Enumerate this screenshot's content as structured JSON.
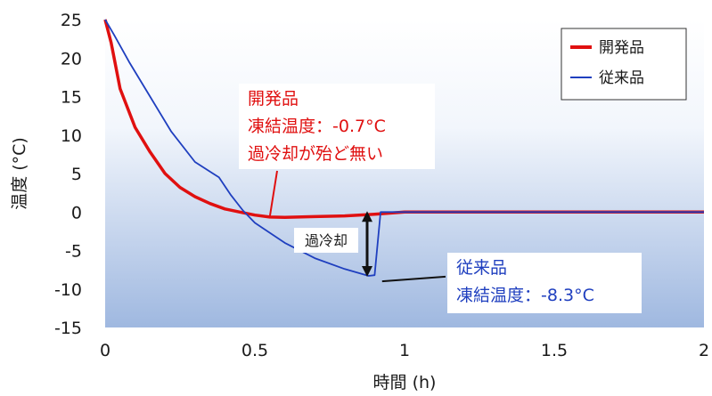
{
  "chart_data": {
    "type": "line",
    "title": "",
    "xlabel": "時間 (h)",
    "ylabel": "温度 (°C)",
    "xlim": [
      0,
      2
    ],
    "ylim": [
      -15,
      25
    ],
    "x_ticks": [
      0,
      0.5,
      1,
      1.5,
      2
    ],
    "x_tick_labels": [
      "0",
      "0.5",
      "1",
      "1.5",
      "2"
    ],
    "y_ticks": [
      25,
      20,
      15,
      10,
      5,
      0,
      -5,
      -10,
      -15
    ],
    "y_tick_labels": [
      "25",
      "20",
      "15",
      "10",
      "5",
      "0",
      "-5",
      "-10",
      "-15"
    ],
    "background": "gradient-white-to-blue",
    "legend_position": "top-right",
    "series": [
      {
        "name": "開発品",
        "color": "#e01010",
        "x": [
          0,
          0.02,
          0.05,
          0.1,
          0.15,
          0.2,
          0.25,
          0.3,
          0.35,
          0.4,
          0.45,
          0.5,
          0.55,
          0.6,
          0.7,
          0.8,
          0.9,
          1.0,
          1.2,
          1.4,
          1.6,
          1.8,
          2.0
        ],
        "y": [
          25,
          22,
          16,
          11,
          7.8,
          5,
          3.2,
          2,
          1.1,
          0.4,
          0,
          -0.4,
          -0.65,
          -0.7,
          -0.6,
          -0.5,
          -0.3,
          0,
          0,
          0,
          0,
          0,
          0
        ]
      },
      {
        "name": "従来品",
        "color": "#1f3fbf",
        "x": [
          0,
          0.03,
          0.08,
          0.15,
          0.22,
          0.3,
          0.36,
          0.38,
          0.42,
          0.46,
          0.5,
          0.6,
          0.7,
          0.8,
          0.88,
          0.9,
          0.92,
          1.0,
          1.2,
          1.4,
          1.6,
          1.8,
          2.0
        ],
        "y": [
          25,
          23,
          19.5,
          15,
          10.5,
          6.5,
          5,
          4.5,
          2.2,
          0.2,
          -1.4,
          -4,
          -6,
          -7.4,
          -8.3,
          -8.2,
          0,
          0,
          0,
          0,
          0,
          0,
          0
        ]
      }
    ],
    "annotations": {
      "dev_lines": [
        "開発品",
        "凍結温度：-0.7°C",
        "過冷却が殆ど無い"
      ],
      "conv_lines": [
        "従来品",
        "凍結温度：-8.3°C"
      ],
      "supercooling_label": "過冷却"
    }
  }
}
